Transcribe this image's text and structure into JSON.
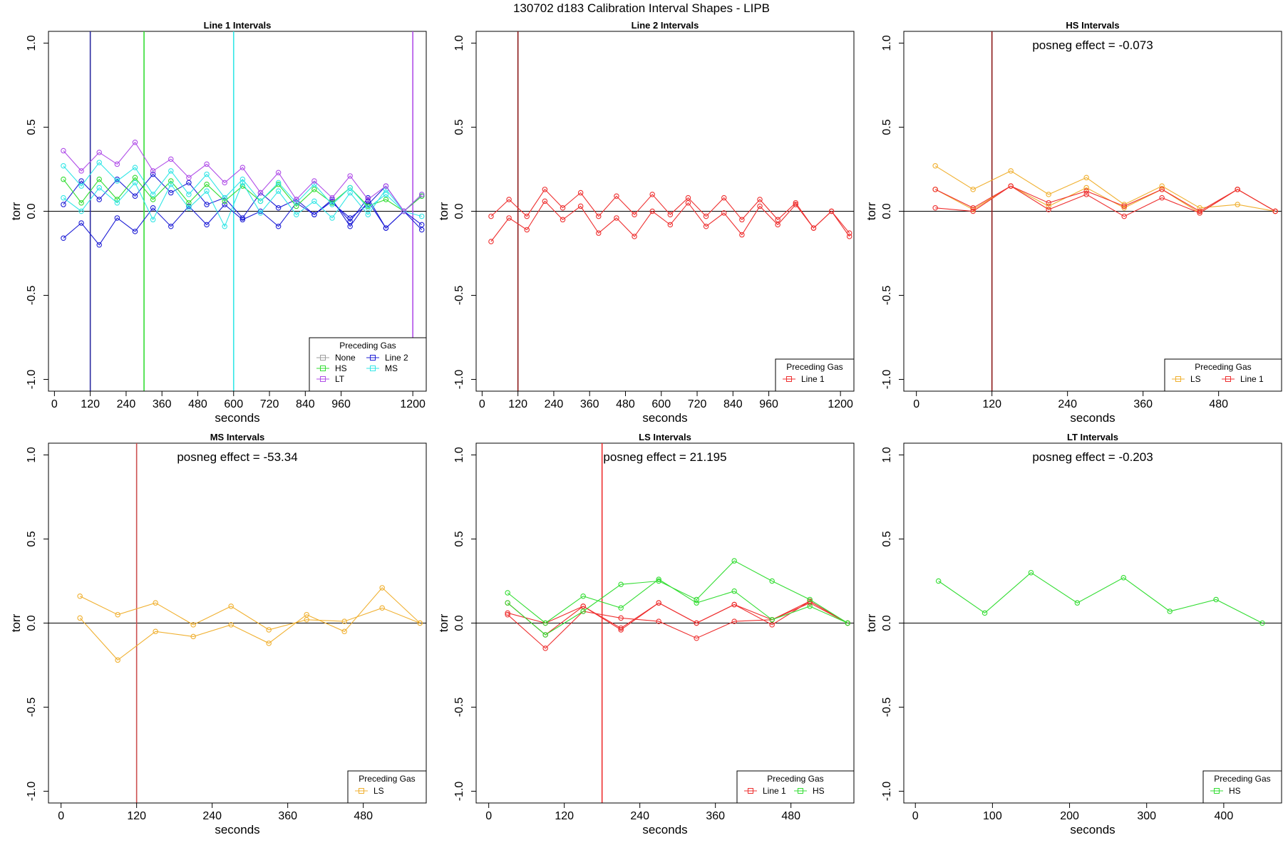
{
  "figure": {
    "title": "130702   d183   Calibration Interval Shapes - LIPB"
  },
  "colors": {
    "None": "#9e9e9e",
    "Line 2": "#1f1fd6",
    "HS": "#33dd33",
    "MS": "#33e6e6",
    "LT": "#b04ee8",
    "LS": "#f0b030",
    "Line 1": "#ee3030",
    "axis": "#000000"
  },
  "chart_data": [
    {
      "type": "line",
      "title": "Line 1 Intervals",
      "xlabel": "seconds",
      "ylabel": "torr",
      "xlim": [
        -20,
        1245
      ],
      "ylim": [
        -1.07,
        1.07
      ],
      "xticks": [
        0,
        120,
        240,
        360,
        480,
        600,
        720,
        840,
        960,
        1200
      ],
      "yticks": [
        -1.0,
        -0.5,
        0.0,
        0.5,
        1.0
      ],
      "ytick_labels": [
        "-1.0",
        "-0.5",
        "0.0",
        "0.5",
        "1.0"
      ],
      "hline": 0,
      "vlines": [
        {
          "x": 120,
          "color": "#2a2aa0"
        },
        {
          "x": 300,
          "color": "#33dd33"
        },
        {
          "x": 600,
          "color": "#33e6e6"
        },
        {
          "x": 1200,
          "color": "#b04ee8"
        }
      ],
      "annotation": "",
      "legend": {
        "title": "Preceding Gas",
        "position": "bottom-right",
        "entries": [
          "None",
          "Line 2",
          "HS",
          "MS",
          "LT"
        ],
        "columns": 2
      },
      "series": [
        {
          "name": "Line 2",
          "x": [
            30,
            90,
            150,
            210,
            270,
            330,
            390,
            450,
            510,
            570,
            630,
            690,
            750,
            810,
            870,
            930,
            990,
            1050,
            1110,
            1170,
            1230
          ],
          "y": [
            -0.16,
            -0.07,
            -0.2,
            -0.04,
            -0.12,
            0.02,
            -0.09,
            0.03,
            -0.08,
            0.04,
            -0.05,
            0.0,
            -0.09,
            0.05,
            -0.02,
            0.06,
            -0.06,
            0.08,
            -0.1,
            0.0,
            -0.08
          ]
        },
        {
          "name": "Line 2",
          "x": [
            30,
            90,
            150,
            210,
            270,
            330,
            390,
            450,
            510,
            570,
            630,
            690,
            750,
            810,
            870,
            930,
            990,
            1050,
            1110,
            1170,
            1230
          ],
          "y": [
            0.04,
            0.18,
            0.07,
            0.19,
            0.09,
            0.22,
            0.11,
            0.17,
            0.04,
            0.08,
            -0.04,
            0.11,
            0.02,
            0.07,
            -0.02,
            0.07,
            -0.09,
            0.06,
            -0.1,
            0.0,
            -0.11
          ]
        },
        {
          "name": "Line 2",
          "x": [
            930,
            990,
            1050,
            1110,
            1170,
            1230
          ],
          "y": [
            0.05,
            -0.04,
            0.04,
            0.15,
            0.0,
            0.09
          ]
        },
        {
          "name": "HS",
          "x": [
            30,
            90,
            150,
            210,
            270,
            330,
            390,
            450,
            510,
            570,
            630,
            690,
            750,
            810,
            870,
            930,
            990,
            1050,
            1110,
            1170,
            1230
          ],
          "y": [
            0.19,
            0.05,
            0.19,
            0.07,
            0.2,
            0.07,
            0.18,
            0.05,
            0.16,
            0.06,
            0.15,
            0.06,
            0.16,
            0.03,
            0.13,
            0.05,
            0.14,
            0.03,
            0.07,
            0.0,
            0.09
          ]
        },
        {
          "name": "MS",
          "x": [
            30,
            90,
            150,
            210,
            270,
            330,
            390,
            450,
            510,
            570,
            630,
            690,
            750,
            810,
            870,
            930,
            990,
            1050,
            1110,
            1170,
            1230
          ],
          "y": [
            0.27,
            0.15,
            0.29,
            0.18,
            0.26,
            0.1,
            0.24,
            0.1,
            0.22,
            0.08,
            0.19,
            0.06,
            0.17,
            0.05,
            0.16,
            0.04,
            0.14,
            0.02,
            0.1,
            0.0,
            0.1
          ]
        },
        {
          "name": "MS",
          "x": [
            30,
            90,
            150,
            210,
            270,
            330,
            390,
            450,
            510,
            570,
            630,
            690,
            750,
            810,
            870,
            930,
            990,
            1050,
            1110,
            1170,
            1230
          ],
          "y": [
            0.08,
            0.0,
            0.14,
            0.05,
            0.17,
            -0.05,
            0.16,
            0.02,
            0.12,
            -0.09,
            0.17,
            -0.01,
            0.12,
            -0.02,
            0.06,
            -0.04,
            0.11,
            -0.02,
            0.13,
            0.0,
            -0.03
          ]
        },
        {
          "name": "LT",
          "x": [
            30,
            90,
            150,
            210,
            270,
            330,
            390,
            450,
            510,
            570,
            630,
            690,
            750,
            810,
            870,
            930,
            990,
            1050,
            1110,
            1170,
            1230
          ],
          "y": [
            0.36,
            0.24,
            0.35,
            0.28,
            0.41,
            0.24,
            0.31,
            0.2,
            0.28,
            0.17,
            0.26,
            0.11,
            0.23,
            0.07,
            0.18,
            0.08,
            0.21,
            0.07,
            0.15,
            0.0,
            0.1
          ]
        }
      ]
    },
    {
      "type": "line",
      "title": "Line 2 Intervals",
      "xlabel": "seconds",
      "ylabel": "torr",
      "xlim": [
        -20,
        1245
      ],
      "ylim": [
        -1.07,
        1.07
      ],
      "xticks": [
        0,
        120,
        240,
        360,
        480,
        600,
        720,
        840,
        960,
        1200
      ],
      "yticks": [
        -1.0,
        -0.5,
        0.0,
        0.5,
        1.0
      ],
      "ytick_labels": [
        "-1.0",
        "-0.5",
        "0.0",
        "0.5",
        "1.0"
      ],
      "hline": 0,
      "vlines": [
        {
          "x": 120,
          "color": "#8b1a1a"
        }
      ],
      "annotation": "",
      "legend": {
        "title": "Preceding Gas",
        "position": "bottom-right",
        "entries": [
          "Line 1"
        ],
        "columns": 1
      },
      "series": [
        {
          "name": "Line 1",
          "x": [
            30,
            90,
            150,
            210,
            270,
            330,
            390,
            450,
            510,
            570,
            630,
            690,
            750,
            810,
            870,
            930,
            990,
            1050,
            1110,
            1170,
            1230
          ],
          "y": [
            -0.18,
            -0.04,
            -0.11,
            0.06,
            -0.05,
            0.03,
            -0.13,
            -0.04,
            -0.15,
            0.0,
            -0.08,
            0.05,
            -0.09,
            -0.01,
            -0.14,
            0.03,
            -0.08,
            0.04,
            -0.1,
            0.0,
            -0.15
          ]
        },
        {
          "name": "Line 1",
          "x": [
            30,
            90,
            150,
            210,
            270,
            330,
            390,
            450,
            510,
            570,
            630,
            690,
            750,
            810,
            870,
            930,
            990,
            1050,
            1110,
            1170,
            1230
          ],
          "y": [
            -0.03,
            0.07,
            -0.03,
            0.13,
            0.02,
            0.11,
            -0.03,
            0.09,
            -0.02,
            0.1,
            -0.02,
            0.08,
            -0.03,
            0.08,
            -0.05,
            0.07,
            -0.05,
            0.05,
            -0.1,
            0.0,
            -0.13
          ]
        }
      ]
    },
    {
      "type": "line",
      "title": "HS Intervals",
      "xlabel": "seconds",
      "ylabel": "torr",
      "xlim": [
        -20,
        580
      ],
      "ylim": [
        -1.07,
        1.07
      ],
      "xticks": [
        0,
        120,
        240,
        360,
        480
      ],
      "yticks": [
        -1.0,
        -0.5,
        0.0,
        0.5,
        1.0
      ],
      "ytick_labels": [
        "-1.0",
        "-0.5",
        "0.0",
        "0.5",
        "1.0"
      ],
      "hline": 0,
      "vlines": [
        {
          "x": 120,
          "color": "#8b1a1a"
        }
      ],
      "annotation": "posneg effect = -0.073",
      "legend": {
        "title": "Preceding Gas",
        "position": "bottom-right",
        "entries": [
          "LS",
          "Line 1"
        ],
        "columns": 2
      },
      "series": [
        {
          "name": "LS",
          "x": [
            30,
            90,
            150,
            210,
            270,
            330,
            390,
            450,
            510,
            570
          ],
          "y": [
            0.27,
            0.13,
            0.24,
            0.1,
            0.2,
            0.04,
            0.15,
            0.02,
            0.04,
            0.0
          ]
        },
        {
          "name": "LS",
          "x": [
            30,
            90,
            150,
            210,
            270,
            330,
            390,
            450,
            510,
            570
          ],
          "y": [
            0.13,
            0.01,
            0.15,
            0.03,
            0.14,
            0.02,
            0.13,
            -0.01,
            0.13,
            0.0
          ]
        },
        {
          "name": "Line 1",
          "x": [
            30,
            90,
            150,
            210,
            270,
            330,
            390,
            450,
            510,
            570
          ],
          "y": [
            0.02,
            0.0,
            0.15,
            0.01,
            0.1,
            -0.03,
            0.08,
            -0.01,
            0.13,
            0.0
          ]
        },
        {
          "name": "Line 1",
          "x": [
            30,
            90,
            150,
            210,
            270,
            330,
            390,
            450,
            510,
            570
          ],
          "y": [
            0.13,
            0.02,
            0.15,
            0.05,
            0.12,
            0.03,
            0.13,
            0.0,
            0.13,
            0.0
          ]
        }
      ]
    },
    {
      "type": "line",
      "title": "MS Intervals",
      "xlabel": "seconds",
      "ylabel": "torr",
      "xlim": [
        -20,
        580
      ],
      "ylim": [
        -1.07,
        1.07
      ],
      "xticks": [
        0,
        120,
        240,
        360,
        480
      ],
      "yticks": [
        -1.0,
        -0.5,
        0.0,
        0.5,
        1.0
      ],
      "ytick_labels": [
        "-1.0",
        "-0.5",
        "0.0",
        "0.5",
        "1.0"
      ],
      "hline": 0,
      "vlines": [
        {
          "x": 120,
          "color": "#cc5050"
        }
      ],
      "annotation": "posneg effect = -53.34",
      "legend": {
        "title": "Preceding Gas",
        "position": "bottom-right",
        "entries": [
          "LS"
        ],
        "columns": 1
      },
      "series": [
        {
          "name": "LS",
          "x": [
            30,
            90,
            150,
            210,
            270,
            330,
            390,
            450,
            510,
            570
          ],
          "y": [
            0.03,
            -0.22,
            -0.05,
            -0.08,
            -0.01,
            -0.12,
            0.05,
            -0.05,
            0.21,
            0.0
          ]
        },
        {
          "name": "LS",
          "x": [
            30,
            90,
            150,
            210,
            270,
            330,
            390,
            450,
            510,
            570
          ],
          "y": [
            0.16,
            0.05,
            0.12,
            -0.01,
            0.1,
            -0.04,
            0.02,
            0.01,
            0.09,
            0.0
          ]
        }
      ]
    },
    {
      "type": "line",
      "title": "LS Intervals",
      "xlabel": "seconds",
      "ylabel": "torr",
      "xlim": [
        -20,
        580
      ],
      "ylim": [
        -1.07,
        1.07
      ],
      "xticks": [
        0,
        120,
        240,
        360,
        480
      ],
      "yticks": [
        -1.0,
        -0.5,
        0.0,
        0.5,
        1.0
      ],
      "ytick_labels": [
        "-1.0",
        "-0.5",
        "0.0",
        "0.5",
        "1.0"
      ],
      "hline": 0,
      "vlines": [
        {
          "x": 180,
          "color": "#ee3030"
        }
      ],
      "annotation": "posneg effect = 21.195",
      "legend": {
        "title": "Preceding Gas",
        "position": "bottom-right",
        "entries": [
          "Line 1",
          "HS"
        ],
        "columns": 2
      },
      "series": [
        {
          "name": "Line 1",
          "x": [
            30,
            90,
            150,
            210,
            270,
            330,
            390,
            450,
            510,
            570
          ],
          "y": [
            0.05,
            -0.15,
            0.07,
            0.03,
            0.01,
            -0.09,
            0.01,
            0.02,
            0.12,
            0.0
          ]
        },
        {
          "name": "Line 1",
          "x": [
            30,
            90,
            150,
            210,
            270,
            330,
            390,
            450,
            510,
            570
          ],
          "y": [
            0.12,
            -0.07,
            0.1,
            -0.03,
            0.12,
            0.0,
            0.11,
            -0.01,
            0.13,
            0.0
          ]
        },
        {
          "name": "Line 1",
          "x": [
            30,
            90,
            150,
            210,
            270,
            330,
            390,
            450,
            510,
            570
          ],
          "y": [
            0.06,
            0.0,
            0.1,
            -0.04,
            0.12,
            0.0,
            0.11,
            0.02,
            0.13,
            0.0
          ]
        },
        {
          "name": "HS",
          "x": [
            30,
            90,
            150,
            210,
            270,
            330,
            390,
            450,
            510,
            570
          ],
          "y": [
            0.18,
            0.0,
            0.16,
            0.09,
            0.26,
            0.12,
            0.19,
            0.02,
            0.1,
            0.0
          ]
        },
        {
          "name": "HS",
          "x": [
            30,
            90,
            150,
            210,
            270,
            330,
            390,
            450,
            510,
            570
          ],
          "y": [
            0.12,
            -0.07,
            0.07,
            0.23,
            0.25,
            0.14,
            0.37,
            0.25,
            0.14,
            0.0
          ]
        }
      ]
    },
    {
      "type": "line",
      "title": "LT Intervals",
      "xlabel": "seconds",
      "ylabel": "torr",
      "xlim": [
        -15,
        475
      ],
      "ylim": [
        -1.07,
        1.07
      ],
      "xticks": [
        0,
        100,
        200,
        300,
        400
      ],
      "yticks": [
        -1.0,
        -0.5,
        0.0,
        0.5,
        1.0
      ],
      "ytick_labels": [
        "-1.0",
        "-0.5",
        "0.0",
        "0.5",
        "1.0"
      ],
      "hline": 0,
      "vlines": [],
      "annotation": "posneg effect = -0.203",
      "legend": {
        "title": "Preceding Gas",
        "position": "bottom-right",
        "entries": [
          "HS"
        ],
        "columns": 1
      },
      "series": [
        {
          "name": "HS",
          "x": [
            30,
            90,
            150,
            210,
            270,
            330,
            390,
            450
          ],
          "y": [
            0.25,
            0.06,
            0.3,
            0.12,
            0.27,
            0.07,
            0.14,
            0.0
          ]
        }
      ]
    }
  ]
}
